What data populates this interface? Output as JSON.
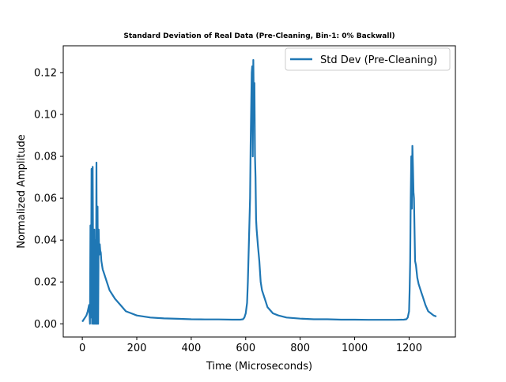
{
  "chart_data": {
    "type": "line",
    "title": "Standard Deviation of Real Data (Pre-Cleaning, Bin-1: 0% Backwall)",
    "xlabel": "Time (Microseconds)",
    "ylabel": "Normalized Amplitude",
    "xlim": [
      -70,
      1370
    ],
    "ylim": [
      -0.0063,
      0.1328
    ],
    "xticks": [
      0,
      200,
      400,
      600,
      800,
      1000,
      1200
    ],
    "xtick_labels": [
      "0",
      "200",
      "400",
      "600",
      "800",
      "1000",
      "1200"
    ],
    "yticks": [
      0.0,
      0.02,
      0.04,
      0.06,
      0.08,
      0.1,
      0.12
    ],
    "ytick_labels": [
      "0.00",
      "0.02",
      "0.04",
      "0.06",
      "0.08",
      "0.10",
      "0.12"
    ],
    "grid": false,
    "legend_position": "upper right",
    "color": "#1f77b4",
    "series": [
      {
        "name": "Std Dev (Pre-Cleaning)",
        "x": [
          0,
          5,
          10,
          15,
          20,
          25,
          28,
          30,
          32,
          34,
          36,
          38,
          40,
          42,
          44,
          46,
          48,
          50,
          52,
          54,
          56,
          58,
          60,
          62,
          64,
          66,
          68,
          70,
          75,
          80,
          90,
          100,
          110,
          120,
          140,
          160,
          180,
          200,
          250,
          300,
          350,
          400,
          450,
          500,
          550,
          580,
          590,
          595,
          600,
          605,
          608,
          610,
          612,
          614,
          616,
          618,
          620,
          622,
          624,
          626,
          628,
          630,
          632,
          634,
          636,
          638,
          640,
          645,
          650,
          655,
          660,
          670,
          680,
          700,
          720,
          750,
          800,
          850,
          900,
          950,
          1000,
          1050,
          1100,
          1150,
          1180,
          1190,
          1195,
          1200,
          1202,
          1204,
          1206,
          1208,
          1210,
          1212,
          1214,
          1216,
          1218,
          1220,
          1222,
          1225,
          1230,
          1235,
          1240,
          1245,
          1250,
          1260,
          1270,
          1280,
          1290,
          1300
        ],
        "y": [
          0.001,
          0.002,
          0.003,
          0.004,
          0.006,
          0.009,
          0.0,
          0.047,
          0.003,
          0.074,
          0.0,
          0.075,
          0.02,
          0.0,
          0.045,
          0.0,
          0.04,
          0.0,
          0.077,
          0.0,
          0.056,
          0.0,
          0.045,
          0.033,
          0.038,
          0.035,
          0.034,
          0.03,
          0.026,
          0.024,
          0.02,
          0.016,
          0.014,
          0.012,
          0.009,
          0.006,
          0.005,
          0.004,
          0.003,
          0.0026,
          0.0024,
          0.0022,
          0.0021,
          0.0021,
          0.002,
          0.002,
          0.0022,
          0.003,
          0.005,
          0.01,
          0.02,
          0.03,
          0.04,
          0.05,
          0.06,
          0.085,
          0.103,
          0.12,
          0.123,
          0.08,
          0.126,
          0.102,
          0.115,
          0.08,
          0.07,
          0.05,
          0.045,
          0.037,
          0.03,
          0.02,
          0.016,
          0.012,
          0.008,
          0.005,
          0.004,
          0.003,
          0.0025,
          0.0022,
          0.0022,
          0.002,
          0.002,
          0.0019,
          0.0019,
          0.0019,
          0.002,
          0.0022,
          0.003,
          0.006,
          0.016,
          0.03,
          0.06,
          0.08,
          0.055,
          0.085,
          0.075,
          0.063,
          0.06,
          0.045,
          0.03,
          0.028,
          0.022,
          0.019,
          0.017,
          0.015,
          0.013,
          0.009,
          0.006,
          0.005,
          0.004,
          0.0035
        ]
      }
    ]
  }
}
